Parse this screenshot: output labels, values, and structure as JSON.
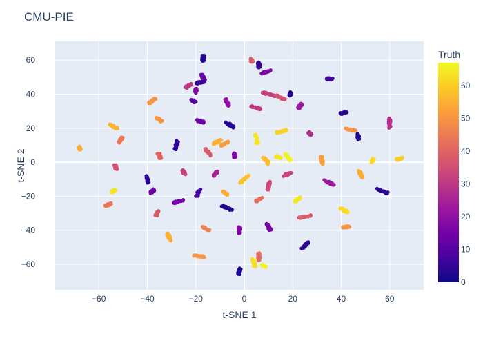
{
  "chart_data": {
    "type": "scatter",
    "title": "CMU-PIE",
    "xlabel": "t-SNE 1",
    "ylabel": "t-SNE 2",
    "xlim": [
      -78,
      74
    ],
    "ylim": [
      -75,
      71
    ],
    "xticks": [
      -60,
      -40,
      -20,
      0,
      20,
      40,
      60
    ],
    "yticks": [
      -60,
      -40,
      -20,
      0,
      20,
      40,
      60
    ],
    "grid": true,
    "colorbar": {
      "title": "Truth",
      "min": 0,
      "max": 67,
      "ticks": [
        0,
        10,
        20,
        30,
        40,
        50,
        60
      ],
      "colorscale": [
        "#0d0887",
        "#46039f",
        "#7201a8",
        "#9c179e",
        "#bd3786",
        "#d8576b",
        "#ed7953",
        "#fb9f3a",
        "#fdca26",
        "#f0f921"
      ]
    },
    "clusters": [
      {
        "x": -17,
        "y": 61,
        "truth": 3
      },
      {
        "x": 3,
        "y": 60,
        "truth": 38
      },
      {
        "x": 6,
        "y": 57,
        "truth": 5
      },
      {
        "x": 9,
        "y": 53,
        "truth": 17
      },
      {
        "x": -17,
        "y": 50,
        "truth": 14
      },
      {
        "x": -18,
        "y": 47,
        "truth": 6
      },
      {
        "x": 35,
        "y": 49,
        "truth": 7
      },
      {
        "x": -23,
        "y": 45,
        "truth": 30
      },
      {
        "x": -20,
        "y": 42,
        "truth": 18
      },
      {
        "x": -38,
        "y": 36,
        "truth": 50
      },
      {
        "x": 10,
        "y": 40,
        "truth": 32
      },
      {
        "x": 15,
        "y": 38,
        "truth": 36
      },
      {
        "x": 19,
        "y": 40,
        "truth": 3
      },
      {
        "x": -21,
        "y": 36,
        "truth": 10
      },
      {
        "x": -7,
        "y": 35,
        "truth": 20
      },
      {
        "x": 5,
        "y": 32,
        "truth": 30
      },
      {
        "x": 23,
        "y": 33,
        "truth": 22
      },
      {
        "x": 41,
        "y": 29,
        "truth": 3
      },
      {
        "x": -35,
        "y": 25,
        "truth": 50
      },
      {
        "x": -18,
        "y": 24,
        "truth": 14
      },
      {
        "x": -6,
        "y": 22,
        "truth": 3
      },
      {
        "x": 60,
        "y": 23,
        "truth": 28
      },
      {
        "x": 27,
        "y": 17,
        "truth": 27
      },
      {
        "x": -54,
        "y": 21,
        "truth": 56
      },
      {
        "x": -28,
        "y": 10,
        "truth": 4
      },
      {
        "x": 15,
        "y": 18,
        "truth": 61
      },
      {
        "x": 5,
        "y": 14,
        "truth": 64
      },
      {
        "x": 44,
        "y": 19,
        "truth": 50
      },
      {
        "x": 47,
        "y": 15,
        "truth": 2
      },
      {
        "x": -51,
        "y": 13,
        "truth": 44
      },
      {
        "x": -11,
        "y": 12,
        "truth": 55
      },
      {
        "x": -8,
        "y": 11,
        "truth": 51
      },
      {
        "x": -68,
        "y": 8,
        "truth": 54
      },
      {
        "x": -15,
        "y": 6,
        "truth": 38
      },
      {
        "x": -4,
        "y": 4,
        "truth": 17
      },
      {
        "x": -35,
        "y": 4,
        "truth": 40
      },
      {
        "x": 9,
        "y": 1,
        "truth": 57
      },
      {
        "x": 14,
        "y": 3,
        "truth": 64
      },
      {
        "x": 18,
        "y": 3,
        "truth": 66
      },
      {
        "x": 32,
        "y": 1,
        "truth": 52
      },
      {
        "x": 53,
        "y": 1,
        "truth": 62
      },
      {
        "x": 64,
        "y": 2,
        "truth": 60
      },
      {
        "x": -53,
        "y": -3,
        "truth": 36
      },
      {
        "x": -25,
        "y": -6,
        "truth": 32
      },
      {
        "x": -12,
        "y": -7,
        "truth": 25
      },
      {
        "x": 18,
        "y": -7,
        "truth": 33
      },
      {
        "x": 35,
        "y": -12,
        "truth": 22
      },
      {
        "x": 48,
        "y": -7,
        "truth": 54
      },
      {
        "x": -40,
        "y": -10,
        "truth": 4
      },
      {
        "x": -38,
        "y": -17,
        "truth": 14
      },
      {
        "x": -54,
        "y": -17,
        "truth": 64
      },
      {
        "x": -56,
        "y": -25,
        "truth": 44
      },
      {
        "x": -19,
        "y": -18,
        "truth": 7
      },
      {
        "x": -8,
        "y": -18,
        "truth": 54
      },
      {
        "x": 0,
        "y": -10,
        "truth": 58
      },
      {
        "x": 10,
        "y": -14,
        "truth": 34
      },
      {
        "x": 6,
        "y": -22,
        "truth": 42
      },
      {
        "x": 22,
        "y": -22,
        "truth": 64
      },
      {
        "x": 57,
        "y": -17,
        "truth": 4
      },
      {
        "x": -27,
        "y": -23,
        "truth": 16
      },
      {
        "x": -36,
        "y": -30,
        "truth": 38
      },
      {
        "x": -7,
        "y": -27,
        "truth": 2
      },
      {
        "x": 41,
        "y": -28,
        "truth": 62
      },
      {
        "x": 25,
        "y": -32,
        "truth": 38
      },
      {
        "x": -16,
        "y": -39,
        "truth": 46
      },
      {
        "x": -2,
        "y": -40,
        "truth": 18
      },
      {
        "x": 10,
        "y": -38,
        "truth": 16
      },
      {
        "x": 42,
        "y": -38,
        "truth": 50
      },
      {
        "x": -31,
        "y": -44,
        "truth": 55
      },
      {
        "x": 25,
        "y": -49,
        "truth": 4
      },
      {
        "x": -19,
        "y": -55,
        "truth": 50
      },
      {
        "x": 6,
        "y": -56,
        "truth": 42
      },
      {
        "x": 4,
        "y": -59,
        "truth": 63
      },
      {
        "x": 8,
        "y": -61,
        "truth": 66
      },
      {
        "x": -2,
        "y": -64,
        "truth": 2
      }
    ]
  }
}
